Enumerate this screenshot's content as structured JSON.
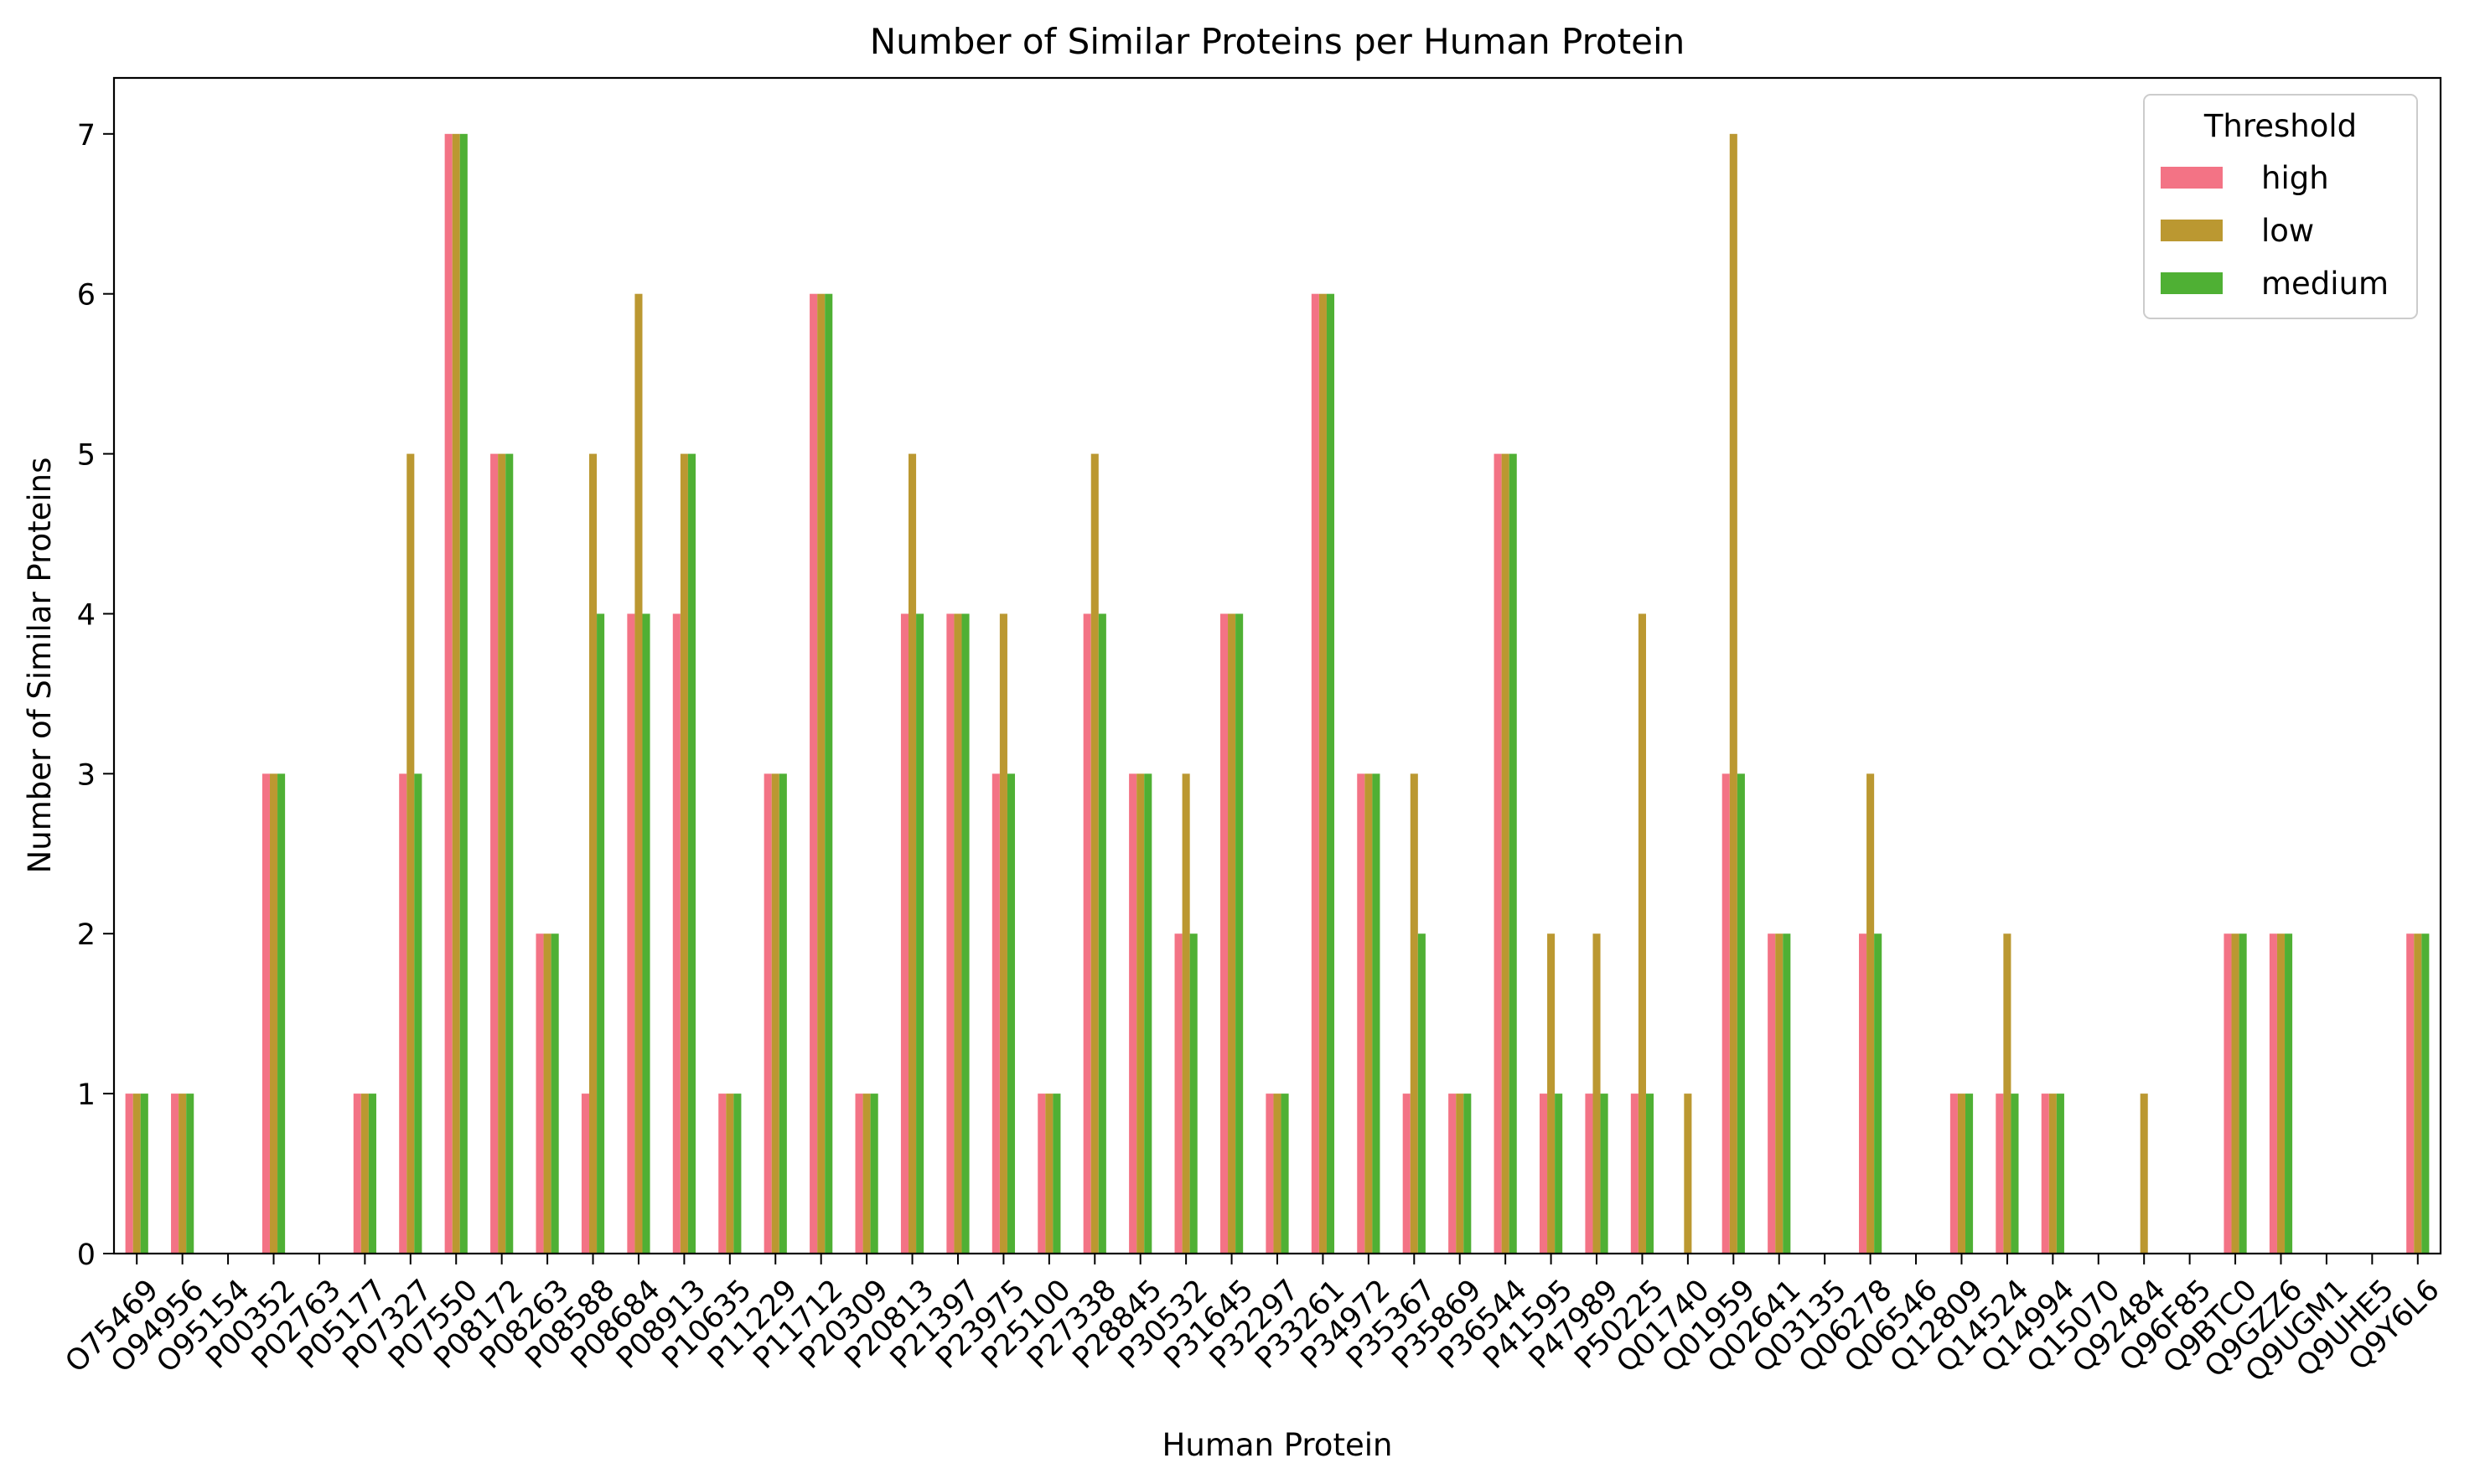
{
  "chart_data": {
    "type": "bar",
    "title": "Number of Similar Proteins per Human Protein",
    "xlabel": "Human Protein",
    "ylabel": "Number of Similar Proteins",
    "ylim": [
      0,
      7.35
    ],
    "yticks": [
      0,
      1,
      2,
      3,
      4,
      5,
      6,
      7
    ],
    "grid": false,
    "legend": {
      "title": "Threshold",
      "placement": "top-right"
    },
    "categories": [
      "O75469",
      "O94956",
      "O95154",
      "P00352",
      "P02763",
      "P05177",
      "P07327",
      "P07550",
      "P08172",
      "P08263",
      "P08588",
      "P08684",
      "P08913",
      "P10635",
      "P11229",
      "P11712",
      "P20309",
      "P20813",
      "P21397",
      "P23975",
      "P25100",
      "P27338",
      "P28845",
      "P30532",
      "P31645",
      "P32297",
      "P33261",
      "P34972",
      "P35367",
      "P35869",
      "P36544",
      "P41595",
      "P47989",
      "P50225",
      "Q01740",
      "Q01959",
      "Q02641",
      "Q03135",
      "Q06278",
      "Q06546",
      "Q12809",
      "Q14524",
      "Q14994",
      "Q15070",
      "Q92484",
      "Q96F85",
      "Q9BTC0",
      "Q9GZZ6",
      "Q9UGM1",
      "Q9UHE5",
      "Q9Y6L6"
    ],
    "series": [
      {
        "name": "high",
        "color": "#f37385",
        "values": [
          1,
          1,
          0,
          3,
          0,
          1,
          3,
          7,
          5,
          2,
          1,
          4,
          4,
          1,
          3,
          6,
          1,
          4,
          4,
          3,
          1,
          4,
          3,
          2,
          4,
          1,
          6,
          3,
          1,
          1,
          5,
          1,
          1,
          1,
          0,
          3,
          2,
          0,
          2,
          0,
          1,
          1,
          1,
          0,
          0,
          0,
          2,
          2,
          0,
          0,
          2
        ]
      },
      {
        "name": "low",
        "color": "#bb9831",
        "values": [
          1,
          1,
          0,
          3,
          0,
          1,
          5,
          7,
          5,
          2,
          5,
          6,
          5,
          1,
          3,
          6,
          1,
          5,
          4,
          4,
          1,
          5,
          3,
          3,
          4,
          1,
          6,
          3,
          3,
          1,
          5,
          2,
          2,
          4,
          1,
          7,
          2,
          0,
          3,
          0,
          1,
          2,
          1,
          0,
          1,
          0,
          2,
          2,
          0,
          0,
          2
        ]
      },
      {
        "name": "medium",
        "color": "#4fb034",
        "values": [
          1,
          1,
          0,
          3,
          0,
          1,
          3,
          7,
          5,
          2,
          4,
          4,
          5,
          1,
          3,
          6,
          1,
          4,
          4,
          3,
          1,
          4,
          3,
          2,
          4,
          1,
          6,
          3,
          2,
          1,
          5,
          1,
          1,
          1,
          0,
          3,
          2,
          0,
          2,
          0,
          1,
          1,
          1,
          0,
          0,
          0,
          2,
          2,
          0,
          0,
          2
        ]
      }
    ]
  }
}
